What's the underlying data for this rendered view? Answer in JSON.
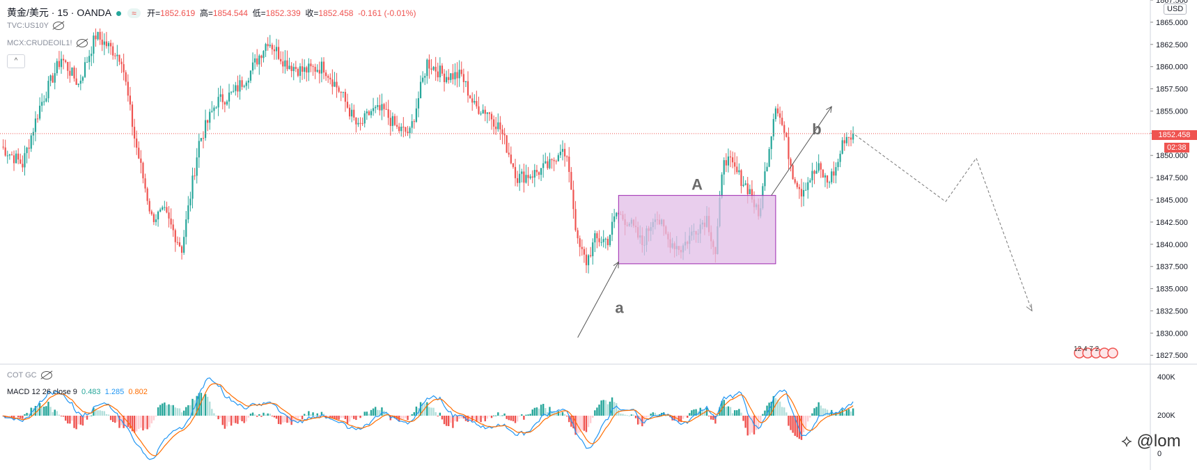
{
  "header": {
    "symbol": "黄金/美元 · 15 · OANDA",
    "open_label": "开=",
    "open_value": "1852.619",
    "high_label": "高=",
    "high_value": "1854.544",
    "low_label": "低=",
    "low_value": "1852.339",
    "close_label": "收=",
    "close_value": "1852.458",
    "change": "-0.161 (-0.01%)",
    "pill_icon": "≈"
  },
  "overlays": [
    "TVC:US10Y",
    "MCX:CRUDEOIL1!"
  ],
  "collapse_icon": "^",
  "currency": "USD",
  "last_price": "1852.458",
  "countdown": "02:38",
  "macd_panel": {
    "cot_label": "COT GC",
    "name": "MACD 12 26 close 9",
    "histogram_value": "0.483",
    "macd_value": "1.285",
    "signal_value": "0.802",
    "axis_ticks": [
      "400K",
      "200K",
      "0"
    ]
  },
  "annotations": {
    "wave_a": "a",
    "wave_A": "A",
    "wave_b": "b"
  },
  "events_label": "12 4 7 2",
  "watermark": "@lom",
  "colors": {
    "up": "#26a69a",
    "down": "#ef5350",
    "box_fill": "#e1bee7",
    "box_stroke": "#9c27b0",
    "macd_line": "#2196f3",
    "signal_line": "#ff6d00"
  },
  "chart_data": {
    "type": "candlestick",
    "title": "黄金/美元 · 15 · OANDA",
    "ylim": [
      1826.5,
      1867.5
    ],
    "y_ticks": [
      1827.5,
      1830.0,
      1832.5,
      1835.0,
      1837.5,
      1840.0,
      1842.5,
      1845.0,
      1847.5,
      1850.0,
      1852.5,
      1855.0,
      1857.5,
      1860.0,
      1862.5,
      1865.0,
      1867.5
    ],
    "last_price": 1852.458,
    "waypoints": [
      [
        0,
        1851.0
      ],
      [
        10,
        1849.0
      ],
      [
        18,
        1855.5
      ],
      [
        28,
        1861.0
      ],
      [
        36,
        1858.0
      ],
      [
        44,
        1863.5
      ],
      [
        56,
        1861.0
      ],
      [
        62,
        1852.0
      ],
      [
        70,
        1843.0
      ],
      [
        76,
        1843.5
      ],
      [
        84,
        1839.5
      ],
      [
        92,
        1851.5
      ],
      [
        100,
        1856.0
      ],
      [
        108,
        1857.0
      ],
      [
        116,
        1859.5
      ],
      [
        124,
        1863.0
      ],
      [
        132,
        1860.5
      ],
      [
        140,
        1859.5
      ],
      [
        150,
        1860.0
      ],
      [
        158,
        1857.0
      ],
      [
        166,
        1853.0
      ],
      [
        172,
        1855.0
      ],
      [
        178,
        1855.0
      ],
      [
        184,
        1853.0
      ],
      [
        190,
        1852.5
      ],
      [
        198,
        1860.5
      ],
      [
        206,
        1859.0
      ],
      [
        214,
        1859.0
      ],
      [
        220,
        1855.5
      ],
      [
        226,
        1855.0
      ],
      [
        232,
        1853.0
      ],
      [
        240,
        1847.5
      ],
      [
        248,
        1848.0
      ],
      [
        256,
        1849.0
      ],
      [
        260,
        1851.0
      ],
      [
        264,
        1848.5
      ],
      [
        268,
        1840.0
      ],
      [
        272,
        1838.0
      ],
      [
        276,
        1840.5
      ],
      [
        282,
        1840.5
      ],
      [
        286,
        1843.5
      ],
      [
        292,
        1842.5
      ],
      [
        298,
        1840.0
      ],
      [
        304,
        1843.5
      ],
      [
        310,
        1840.5
      ],
      [
        316,
        1839.5
      ],
      [
        322,
        1841.5
      ],
      [
        328,
        1843.0
      ],
      [
        332,
        1839.0
      ],
      [
        336,
        1850.0
      ],
      [
        342,
        1848.0
      ],
      [
        348,
        1846.0
      ],
      [
        352,
        1843.0
      ],
      [
        356,
        1849.5
      ],
      [
        360,
        1856.0
      ],
      [
        364,
        1852.5
      ],
      [
        368,
        1848.0
      ],
      [
        372,
        1846.0
      ],
      [
        376,
        1847.5
      ],
      [
        380,
        1848.5
      ],
      [
        384,
        1847.0
      ],
      [
        388,
        1848.5
      ],
      [
        392,
        1852.0
      ],
      [
        396,
        1852.3
      ]
    ],
    "projection": [
      1852.3,
      1844.8,
      1849.7,
      1832.5
    ],
    "box": {
      "label": "A",
      "x_start": 287,
      "x_end": 360,
      "y_low": 1837.8,
      "y_high": 1845.5
    },
    "arrows": [
      {
        "label": "a",
        "from": [
          268,
          1829.5
        ],
        "to": [
          287,
          1838.0
        ]
      },
      {
        "label": "b",
        "from": [
          358,
          1845.5
        ],
        "to": [
          386,
          1855.5
        ]
      }
    ],
    "macd": {
      "histogram_value": 0.483,
      "macd_value": 1.285,
      "signal_value": 0.802
    }
  }
}
